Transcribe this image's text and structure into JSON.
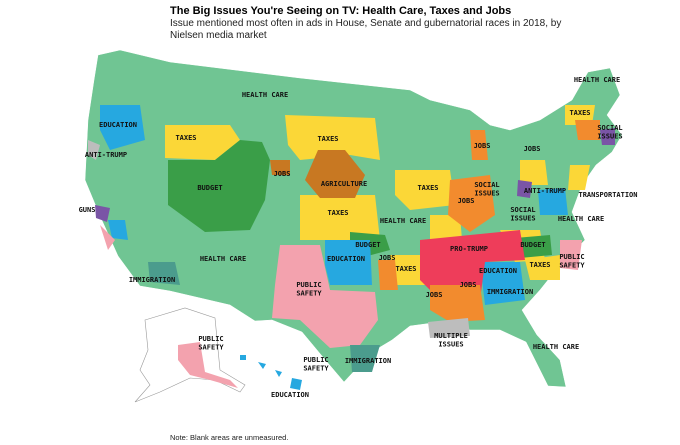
{
  "header": {
    "title": "The Big Issues You're Seeing on TV: Health Care, Taxes and Jobs",
    "subtitle": [
      "Issue mentioned most often in ads in House, Senate and gubernatorial races in 2018, by",
      "Nielsen media market"
    ]
  },
  "labels": [
    {
      "lines": [
        "HEALTH CARE"
      ]
    },
    {
      "lines": [
        "HEALTH CARE"
      ]
    },
    {
      "lines": [
        "EDUCATION"
      ]
    },
    {
      "lines": [
        "TAXES"
      ]
    },
    {
      "lines": [
        "TAXES"
      ]
    },
    {
      "lines": [
        "TAXES"
      ]
    },
    {
      "lines": [
        "SOCIAL",
        "ISSUES"
      ]
    },
    {
      "lines": [
        "JOBS"
      ]
    },
    {
      "lines": [
        "ANTI-TRUMP"
      ]
    },
    {
      "lines": [
        "JOBS"
      ]
    },
    {
      "lines": [
        "JOBS"
      ]
    },
    {
      "lines": [
        "AGRICULTURE"
      ]
    },
    {
      "lines": [
        "BUDGET"
      ]
    },
    {
      "lines": [
        "TAXES"
      ]
    },
    {
      "lines": [
        "SOCIAL",
        "ISSUES"
      ]
    },
    {
      "lines": [
        "ANTI-TRUMP"
      ]
    },
    {
      "lines": [
        "TRANSPORTATION"
      ]
    },
    {
      "lines": [
        "JOBS"
      ]
    },
    {
      "lines": [
        "GUNS"
      ]
    },
    {
      "lines": [
        "TAXES"
      ]
    },
    {
      "lines": [
        "HEALTH CARE"
      ]
    },
    {
      "lines": [
        "SOCIAL",
        "ISSUES"
      ]
    },
    {
      "lines": [
        "HEALTH CARE"
      ]
    },
    {
      "lines": [
        "BUDGET"
      ]
    },
    {
      "lines": [
        "PRO-TRUMP"
      ]
    },
    {
      "lines": [
        "BUDGET"
      ]
    },
    {
      "lines": [
        "HEALTH CARE"
      ]
    },
    {
      "lines": [
        "EDUCATION"
      ]
    },
    {
      "lines": [
        "JOBS"
      ]
    },
    {
      "lines": [
        "TAXES"
      ]
    },
    {
      "lines": [
        "TAXES"
      ]
    },
    {
      "lines": [
        "PUBLIC",
        "SAFETY"
      ]
    },
    {
      "lines": [
        "EDUCATION"
      ]
    },
    {
      "lines": [
        "IMMIGRATION"
      ]
    },
    {
      "lines": [
        "PUBLIC",
        "SAFETY"
      ]
    },
    {
      "lines": [
        "JOBS"
      ]
    },
    {
      "lines": [
        "IMMIGRATION"
      ]
    },
    {
      "lines": [
        "JOBS"
      ]
    },
    {
      "lines": [
        "MULTIPLE",
        "ISSUES"
      ]
    },
    {
      "lines": [
        "HEALTH CARE"
      ]
    },
    {
      "lines": [
        "PUBLIC",
        "SAFETY"
      ]
    },
    {
      "lines": [
        "PUBLIC",
        "SAFETY"
      ]
    },
    {
      "lines": [
        "IMMIGRATION"
      ]
    },
    {
      "lines": [
        "EDUCATION"
      ]
    }
  ],
  "note": "Note: Blank areas are unmeasured."
}
